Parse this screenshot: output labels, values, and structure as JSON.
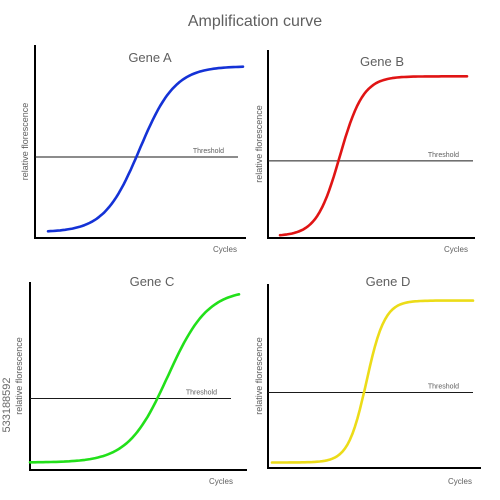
{
  "title": "Amplification curve",
  "watermark_id": "533188592",
  "charts": [
    {
      "type": "line",
      "title": "Gene A",
      "xlabel": "Cycles",
      "ylabel": "relative florescence",
      "threshold_label": "Threshold",
      "threshold": 0.42,
      "color": "#1432d6",
      "curve": {
        "baseline": 0.03,
        "plateau": 0.89,
        "midpoint": 0.47,
        "steepness": 11.0
      }
    },
    {
      "type": "line",
      "title": "Gene B",
      "xlabel": "Cycles",
      "ylabel": "relative florescence",
      "threshold_label": "Threshold",
      "threshold": 0.41,
      "color": "#e01414",
      "curve": {
        "baseline": 0.01,
        "plateau": 0.86,
        "midpoint": 0.32,
        "steepness": 16.0
      }
    },
    {
      "type": "line",
      "title": "Gene C",
      "xlabel": "Cycles",
      "ylabel": "relative florescence",
      "threshold_label": "Threshold",
      "threshold": 0.38,
      "color": "#22e01a",
      "curve": {
        "baseline": 0.04,
        "plateau": 0.96,
        "midpoint": 0.66,
        "steepness": 10.5
      }
    },
    {
      "type": "line",
      "title": "Gene D",
      "xlabel": "Cycles",
      "ylabel": "relative florescence",
      "threshold_label": "Threshold",
      "threshold": 0.41,
      "color": "#ecdc18",
      "curve": {
        "baseline": 0.03,
        "plateau": 0.91,
        "midpoint": 0.47,
        "steepness": 22.0
      }
    }
  ],
  "chart_data": [
    {
      "type": "line",
      "title": "Gene A",
      "xlabel": "Cycles",
      "ylabel": "relative florescence",
      "xlim": [
        0,
        1
      ],
      "ylim": [
        0,
        1
      ],
      "series": [
        {
          "x": [
            0.05,
            0.2,
            0.35,
            0.47,
            0.6,
            0.75,
            0.9,
            1.0
          ],
          "y": [
            0.04,
            0.1,
            0.28,
            0.46,
            0.66,
            0.8,
            0.86,
            0.88
          ]
        }
      ],
      "threshold": 0.42
    },
    {
      "type": "line",
      "title": "Gene B",
      "xlabel": "Cycles",
      "ylabel": "relative florescence",
      "xlim": [
        0,
        1
      ],
      "ylim": [
        0,
        1
      ],
      "series": [
        {
          "x": [
            0.05,
            0.15,
            0.25,
            0.32,
            0.4,
            0.5,
            0.7,
            1.0
          ],
          "y": [
            0.03,
            0.1,
            0.3,
            0.45,
            0.66,
            0.8,
            0.85,
            0.86
          ]
        }
      ],
      "threshold": 0.41
    },
    {
      "type": "line",
      "title": "Gene C",
      "xlabel": "Cycles",
      "ylabel": "relative florescence",
      "xlim": [
        0,
        1
      ],
      "ylim": [
        0,
        1
      ],
      "series": [
        {
          "x": [
            0.03,
            0.2,
            0.4,
            0.55,
            0.66,
            0.8,
            0.9,
            1.0
          ],
          "y": [
            0.04,
            0.06,
            0.14,
            0.32,
            0.5,
            0.76,
            0.88,
            0.94
          ]
        }
      ],
      "threshold": 0.38
    },
    {
      "type": "line",
      "title": "Gene D",
      "xlabel": "Cycles",
      "ylabel": "relative florescence",
      "xlim": [
        0,
        1
      ],
      "ylim": [
        0,
        1
      ],
      "series": [
        {
          "x": [
            0.05,
            0.25,
            0.35,
            0.47,
            0.55,
            0.65,
            0.8,
            1.0
          ],
          "y": [
            0.03,
            0.05,
            0.13,
            0.47,
            0.77,
            0.89,
            0.91,
            0.91
          ]
        }
      ],
      "threshold": 0.41
    }
  ]
}
